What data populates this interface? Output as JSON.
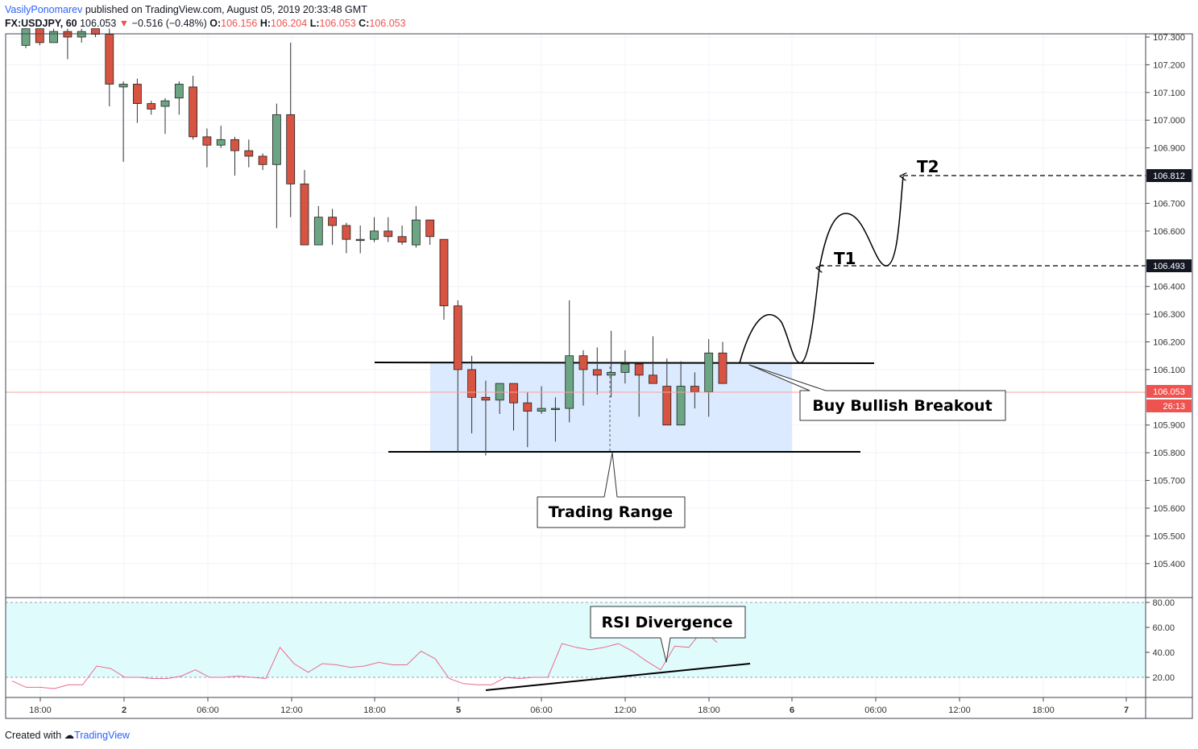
{
  "header": {
    "author": "VasilyPonomarev",
    "published_text": "published on TradingView.com, August 05, 2019 20:33:48 GMT",
    "symbol": "FX:USDJPY, 60",
    "last": "106.053",
    "change": "−0.516 (−0.48%)",
    "open_label": "O:",
    "open": "106.156",
    "high_label": "H:",
    "high": "106.204",
    "low_label": "L:",
    "low": "106.053",
    "close_label": "C:",
    "close": "106.053"
  },
  "footer": {
    "created_with": "Created with",
    "brand": "TradingView"
  },
  "colors": {
    "up": "#6ba583",
    "down": "#d75442",
    "range_fill": "#dbeafe",
    "rsi_bg": "#e0fbfc",
    "rsi_line": "#e86b8d",
    "price_tag": "#ef5350"
  },
  "annotations": {
    "trading_range": "Trading Range",
    "buy_breakout": "Buy Bullish Breakout",
    "rsi_divergence": "RSI Divergence",
    "t1": "T1",
    "t2": "T2"
  },
  "chart_data": [
    {
      "type": "candlestick",
      "symbol": "FX:USDJPY",
      "interval": "60",
      "y_axis": {
        "min": 105.35,
        "max": 107.3,
        "ticks": [
          107.3,
          107.2,
          107.1,
          107.0,
          106.9,
          106.7,
          106.6,
          106.4,
          106.3,
          106.2,
          106.1,
          105.9,
          105.8,
          105.7,
          105.6,
          105.5,
          105.4
        ]
      },
      "x_axis": {
        "tick_labels": [
          "18:00",
          "2",
          "06:00",
          "12:00",
          "18:00",
          "5",
          "06:00",
          "12:00",
          "18:00",
          "6",
          "06:00",
          "12:00",
          "18:00",
          "7"
        ]
      },
      "price_labels": {
        "current": "106.053",
        "countdown": "26:13",
        "t1_level": "106.493",
        "t2_level": "106.812"
      },
      "resistance": 106.155,
      "support": 105.838,
      "candles": [
        {
          "o": 107.27,
          "h": 107.33,
          "l": 107.26,
          "c": 107.33
        },
        {
          "o": 107.33,
          "h": 107.33,
          "l": 107.27,
          "c": 107.28
        },
        {
          "o": 107.28,
          "h": 107.33,
          "l": 107.28,
          "c": 107.32
        },
        {
          "o": 107.32,
          "h": 107.33,
          "l": 107.22,
          "c": 107.3
        },
        {
          "o": 107.3,
          "h": 107.33,
          "l": 107.28,
          "c": 107.32
        },
        {
          "o": 107.33,
          "h": 107.33,
          "l": 107.3,
          "c": 107.31
        },
        {
          "o": 107.31,
          "h": 107.33,
          "l": 107.05,
          "c": 107.13
        },
        {
          "o": 107.12,
          "h": 107.14,
          "l": 106.85,
          "c": 107.13
        },
        {
          "o": 107.13,
          "h": 107.15,
          "l": 106.99,
          "c": 107.06
        },
        {
          "o": 107.06,
          "h": 107.07,
          "l": 107.02,
          "c": 107.04
        },
        {
          "o": 107.05,
          "h": 107.08,
          "l": 106.95,
          "c": 107.07
        },
        {
          "o": 107.08,
          "h": 107.14,
          "l": 107.02,
          "c": 107.13
        },
        {
          "o": 107.12,
          "h": 107.16,
          "l": 106.93,
          "c": 106.94
        },
        {
          "o": 106.94,
          "h": 106.97,
          "l": 106.83,
          "c": 106.91
        },
        {
          "o": 106.91,
          "h": 106.98,
          "l": 106.9,
          "c": 106.93
        },
        {
          "o": 106.93,
          "h": 106.94,
          "l": 106.8,
          "c": 106.89
        },
        {
          "o": 106.89,
          "h": 106.93,
          "l": 106.83,
          "c": 106.87
        },
        {
          "o": 106.87,
          "h": 106.88,
          "l": 106.82,
          "c": 106.84
        },
        {
          "o": 106.84,
          "h": 107.06,
          "l": 106.61,
          "c": 107.02
        },
        {
          "o": 107.02,
          "h": 107.28,
          "l": 106.65,
          "c": 106.77
        },
        {
          "o": 106.77,
          "h": 106.82,
          "l": 106.55,
          "c": 106.55
        },
        {
          "o": 106.55,
          "h": 106.69,
          "l": 106.55,
          "c": 106.65
        },
        {
          "o": 106.65,
          "h": 106.68,
          "l": 106.55,
          "c": 106.62
        },
        {
          "o": 106.62,
          "h": 106.63,
          "l": 106.52,
          "c": 106.57
        },
        {
          "o": 106.57,
          "h": 106.62,
          "l": 106.52,
          "c": 106.57
        },
        {
          "o": 106.57,
          "h": 106.65,
          "l": 106.56,
          "c": 106.6
        },
        {
          "o": 106.6,
          "h": 106.65,
          "l": 106.56,
          "c": 106.58
        },
        {
          "o": 106.58,
          "h": 106.62,
          "l": 106.55,
          "c": 106.56
        },
        {
          "o": 106.55,
          "h": 106.69,
          "l": 106.54,
          "c": 106.64
        },
        {
          "o": 106.64,
          "h": 106.64,
          "l": 106.55,
          "c": 106.58
        },
        {
          "o": 106.57,
          "h": 106.57,
          "l": 106.28,
          "c": 106.33
        },
        {
          "o": 106.33,
          "h": 106.35,
          "l": 105.8,
          "c": 106.1
        },
        {
          "o": 106.1,
          "h": 106.15,
          "l": 105.87,
          "c": 106.0
        },
        {
          "o": 106.0,
          "h": 106.06,
          "l": 105.79,
          "c": 105.99
        },
        {
          "o": 105.99,
          "h": 106.05,
          "l": 105.94,
          "c": 106.05
        },
        {
          "o": 106.05,
          "h": 106.05,
          "l": 105.88,
          "c": 105.98
        },
        {
          "o": 105.98,
          "h": 106.02,
          "l": 105.82,
          "c": 105.95
        },
        {
          "o": 105.95,
          "h": 106.04,
          "l": 105.94,
          "c": 105.96
        },
        {
          "o": 105.96,
          "h": 106.0,
          "l": 105.84,
          "c": 105.96
        },
        {
          "o": 105.96,
          "h": 106.35,
          "l": 105.91,
          "c": 106.15
        },
        {
          "o": 106.15,
          "h": 106.17,
          "l": 105.97,
          "c": 106.1
        },
        {
          "o": 106.1,
          "h": 106.18,
          "l": 106.01,
          "c": 106.08
        },
        {
          "o": 106.08,
          "h": 106.24,
          "l": 106.0,
          "c": 106.09
        },
        {
          "o": 106.09,
          "h": 106.17,
          "l": 106.05,
          "c": 106.12
        },
        {
          "o": 106.12,
          "h": 106.12,
          "l": 105.93,
          "c": 106.08
        },
        {
          "o": 106.08,
          "h": 106.22,
          "l": 106.06,
          "c": 106.05
        },
        {
          "o": 106.04,
          "h": 106.14,
          "l": 105.9,
          "c": 105.9
        },
        {
          "o": 105.9,
          "h": 106.13,
          "l": 105.9,
          "c": 106.04
        },
        {
          "o": 106.04,
          "h": 106.09,
          "l": 105.96,
          "c": 106.02
        },
        {
          "o": 106.02,
          "h": 106.21,
          "l": 105.93,
          "c": 106.16
        },
        {
          "o": 106.16,
          "h": 106.2,
          "l": 106.05,
          "c": 106.05
        }
      ]
    },
    {
      "type": "line",
      "name": "RSI",
      "y_axis": {
        "min": 10,
        "max": 90,
        "ticks": [
          80,
          60,
          40,
          20
        ],
        "overbought": 80,
        "oversold": 20
      },
      "values": [
        17,
        12,
        12,
        11,
        14,
        14,
        29,
        27,
        20,
        20,
        19,
        19,
        21,
        26,
        20,
        20,
        21,
        20,
        19,
        44,
        31,
        24,
        31,
        30,
        28,
        29,
        32,
        30,
        30,
        41,
        35,
        19,
        15,
        14,
        14,
        20,
        19,
        20,
        20,
        47,
        44,
        42,
        44,
        47,
        41,
        33,
        26,
        45,
        44,
        58,
        48
      ]
    }
  ]
}
